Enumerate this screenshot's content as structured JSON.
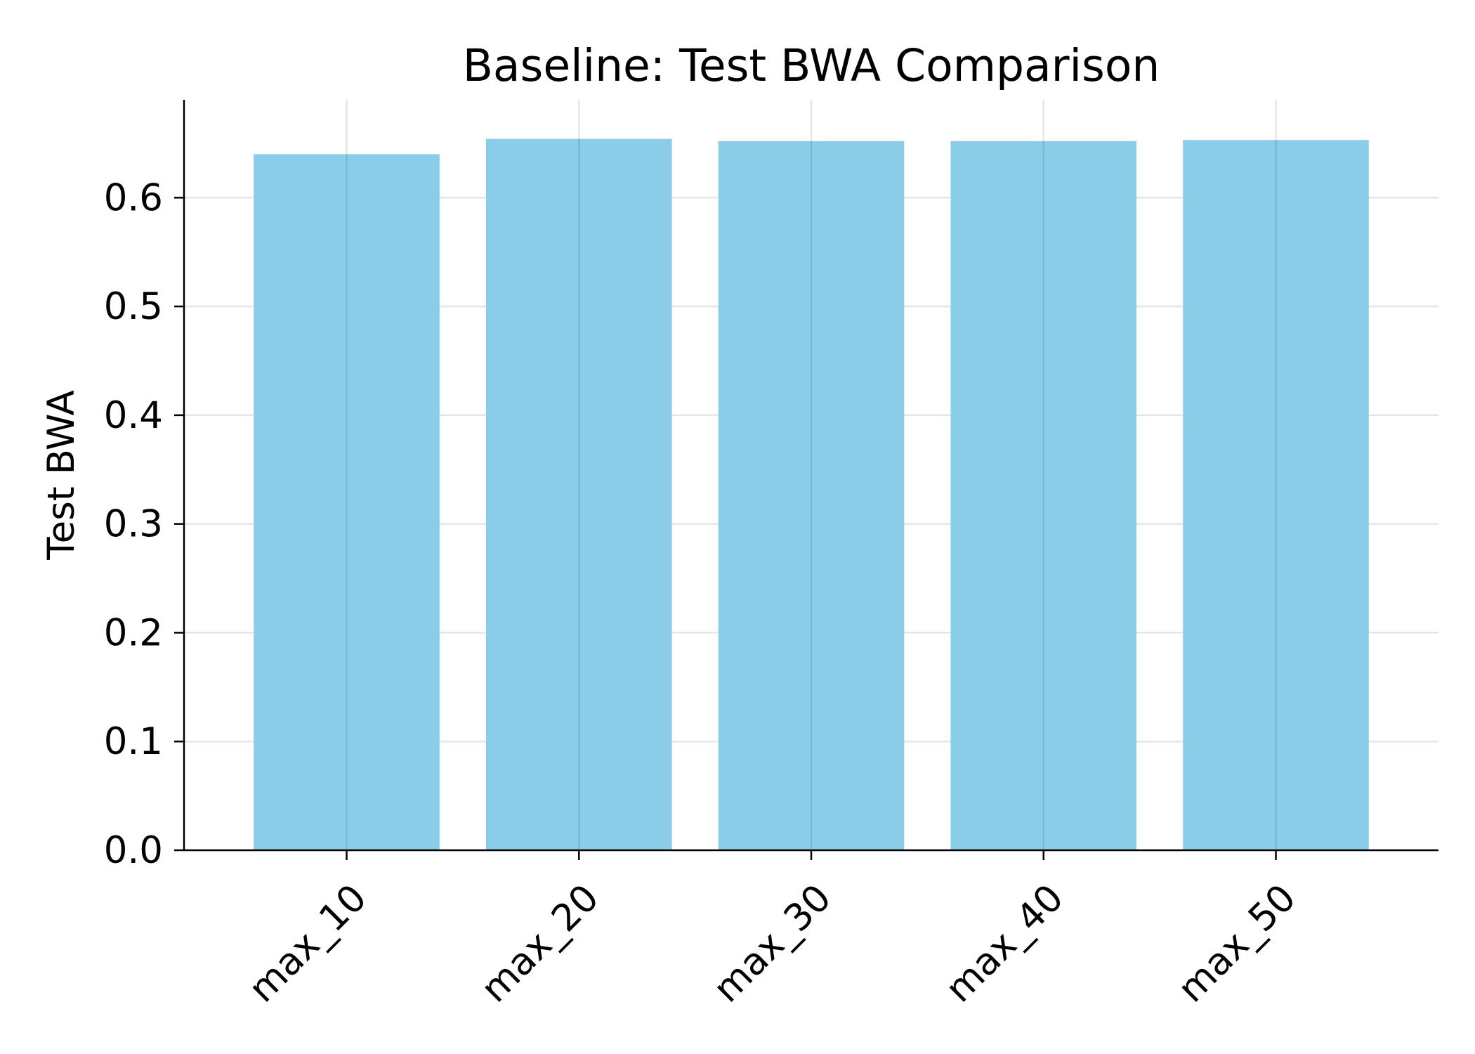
{
  "chart_data": {
    "type": "bar",
    "title": "Baseline: Test BWA Comparison",
    "xlabel": "",
    "ylabel": "Test BWA",
    "categories": [
      "max_10",
      "max_20",
      "max_30",
      "max_40",
      "max_50"
    ],
    "values": [
      0.64,
      0.654,
      0.652,
      0.652,
      0.653
    ],
    "ylim": [
      0,
      0.69
    ],
    "yticks": [
      "0.0",
      "0.1",
      "0.2",
      "0.3",
      "0.4",
      "0.5",
      "0.6"
    ],
    "grid": true,
    "legend": "none",
    "bar_color": "#89CDE9",
    "grid_color": "#E5E5E5",
    "axis_color": "#000000"
  }
}
